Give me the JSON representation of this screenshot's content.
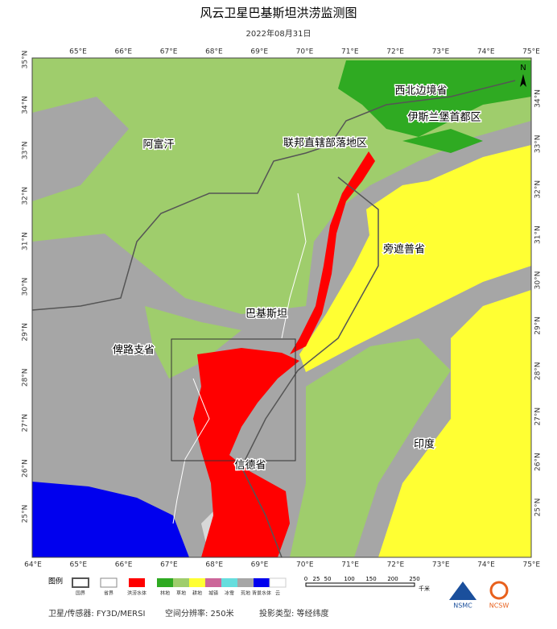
{
  "title": "风云卫星巴基斯坦洪涝监测图",
  "date": "2022年08月31日",
  "lon_top": [
    "65°E",
    "66°E",
    "67°E",
    "68°E",
    "69°E",
    "70°E",
    "71°E",
    "72°E",
    "73°E",
    "74°E",
    "75°E"
  ],
  "lon_bottom": [
    "64°E",
    "65°E",
    "66°E",
    "67°E",
    "68°E",
    "69°E",
    "70°E",
    "71°E",
    "72°E",
    "73°E",
    "74°E",
    "75°E"
  ],
  "lat_left": [
    "35°N",
    "34°N",
    "33°N",
    "32°N",
    "31°N",
    "30°N",
    "29°N",
    "28°N",
    "27°N",
    "26°N",
    "25°N"
  ],
  "lat_right": [
    "34°N",
    "33°N",
    "32°N",
    "31°N",
    "30°N",
    "29°N",
    "28°N",
    "27°N",
    "26°N",
    "25°N"
  ],
  "regions": [
    "阿富汗",
    "巴基斯坦",
    "俾路支省",
    "信德省",
    "旁遮普省",
    "联邦直辖部落地区",
    "西北边境省",
    "伊斯兰堡首都区",
    "印度"
  ],
  "north": "N",
  "legend": {
    "title": "图例",
    "items": [
      "国界",
      "省界",
      "洪涝水体",
      "林地",
      "草地",
      "耕地",
      "城镇",
      "冰雪",
      "荒地",
      "背景水体",
      "云"
    ]
  },
  "scale": {
    "labels": [
      "0",
      "25",
      "50",
      "100",
      "150",
      "200",
      "250"
    ],
    "unit": "千米"
  },
  "footer": {
    "satellite": "卫星/传感器: FY3D/MERSI",
    "resolution": "空间分辨率: 250米",
    "projection": "投影类型: 等经纬度"
  },
  "logos": [
    "NSMC",
    "NCSW"
  ]
}
